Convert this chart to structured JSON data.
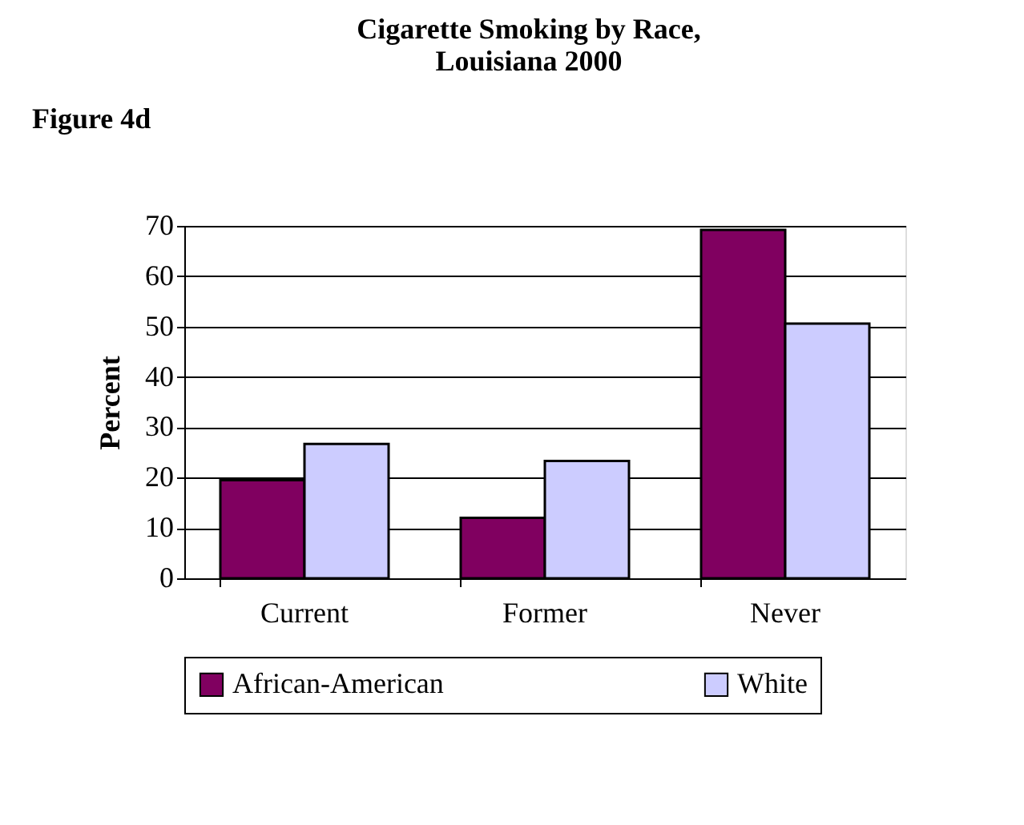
{
  "chart_data": {
    "type": "bar",
    "title": "Cigarette Smoking by Race, Louisiana 2000",
    "ylabel": "Percent",
    "annotations": [
      "Figure 4d"
    ],
    "categories": [
      "Current",
      "Former",
      "Never"
    ],
    "series": [
      {
        "name": "African-American",
        "color": "#800060",
        "values": [
          19.5,
          12.0,
          69.2
        ]
      },
      {
        "name": "White",
        "color": "#ccccff",
        "values": [
          26.7,
          23.3,
          50.6
        ]
      }
    ],
    "ylim": [
      0,
      70
    ],
    "yticks": [
      0,
      10,
      20,
      30,
      40,
      50,
      60,
      70
    ],
    "grid": "y",
    "legend": "bottom"
  }
}
